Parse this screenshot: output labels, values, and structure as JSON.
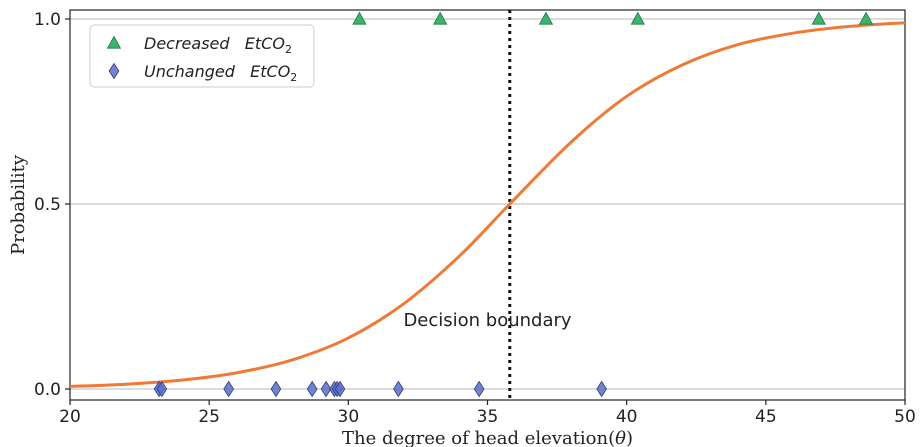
{
  "chart_data": {
    "type": "scatter",
    "xlabel": "The degree of head elevation(θ)",
    "ylabel": "Probability",
    "xlim": [
      20,
      50
    ],
    "ylim": [
      0,
      1
    ],
    "xticks": [
      20,
      25,
      30,
      35,
      40,
      45,
      50
    ],
    "yticks": [
      0.0,
      0.5,
      1.0
    ],
    "ytick_labels": [
      "0.0",
      "0.5",
      "1.0"
    ],
    "grid": "horizontal",
    "legend_position": "top-left",
    "series": [
      {
        "name": "Decreased   EtCO",
        "name_sub": "2",
        "marker": "triangle",
        "color": "#3cb36b",
        "x": [
          30.4,
          33.3,
          37.1,
          40.4,
          46.9,
          48.6
        ],
        "y": [
          1,
          1,
          1,
          1,
          1,
          1
        ]
      },
      {
        "name": "Unchanged   EtCO",
        "name_sub": "2",
        "marker": "diamond",
        "color": "#5b6ec2",
        "x": [
          23.2,
          23.3,
          25.7,
          27.4,
          28.7,
          29.2,
          29.5,
          29.6,
          29.7,
          31.8,
          34.7,
          39.1
        ],
        "y": [
          0,
          0,
          0,
          0,
          0,
          0,
          0,
          0,
          0,
          0,
          0,
          0
        ]
      },
      {
        "type": "line",
        "color": "#ef7a35",
        "x": [
          20,
          22,
          24,
          26,
          28,
          30,
          32,
          34,
          35.8,
          38,
          40,
          42,
          44,
          46,
          48,
          50
        ],
        "y": [
          0.007,
          0.013,
          0.024,
          0.044,
          0.079,
          0.138,
          0.231,
          0.36,
          0.5,
          0.667,
          0.791,
          0.876,
          0.931,
          0.962,
          0.98,
          0.99
        ]
      }
    ],
    "decision_boundary": {
      "x": 35.8,
      "color": "#111111"
    },
    "annotation": "Decision  boundary",
    "annotation_pos": {
      "x": 35.0,
      "y": 0.17
    }
  }
}
